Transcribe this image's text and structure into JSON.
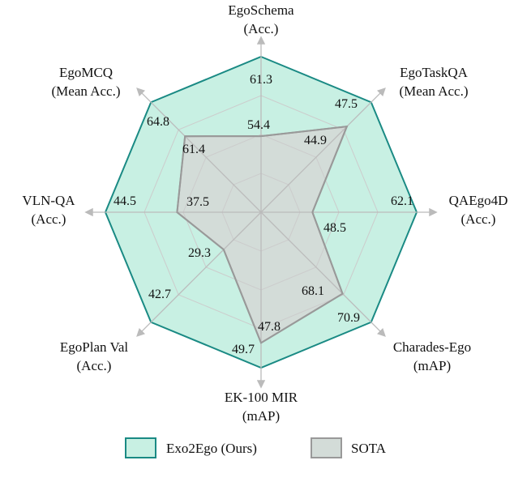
{
  "chart_data": {
    "type": "radar",
    "axes": [
      {
        "name": "EgoSchema",
        "unit": "(Acc.)",
        "range": [
          47.8,
          61.3
        ]
      },
      {
        "name": "EgoTaskQA",
        "unit": "(Mean Acc.)",
        "range": [
          35.7,
          47.5
        ]
      },
      {
        "name": "QAEgo4D",
        "unit": "(Acc.)",
        "range": [
          41.8,
          62.1
        ]
      },
      {
        "name": "Charades-Ego",
        "unit": "(mAP)",
        "range": [
          60.1,
          70.9
        ]
      },
      {
        "name": "EK-100 MIR",
        "unit": "(mAP)",
        "range": [
          37.8,
          49.7
        ]
      },
      {
        "name": "EgoPlan Val",
        "unit": "(Acc.)",
        "range": [
          22.4,
          42.7
        ]
      },
      {
        "name": "VLN-QA",
        "unit": "(Acc.)",
        "range": [
          29.3,
          44.5
        ]
      },
      {
        "name": "EgoMCQ",
        "unit": "(Mean Acc.)",
        "range": [
          53.8,
          64.8
        ]
      }
    ],
    "series": [
      {
        "name": "Exo2Ego (Ours)",
        "color": "#1a8a84",
        "fill": "#c8f0e3",
        "values": [
          61.3,
          47.5,
          62.1,
          70.9,
          49.7,
          42.7,
          44.5,
          64.8
        ]
      },
      {
        "name": "SOTA",
        "color": "#999999",
        "fill": "#d3dcd8",
        "values": [
          54.4,
          44.9,
          48.5,
          68.1,
          47.8,
          29.3,
          37.5,
          61.4
        ]
      }
    ],
    "grid": true,
    "legend": "bottom"
  }
}
